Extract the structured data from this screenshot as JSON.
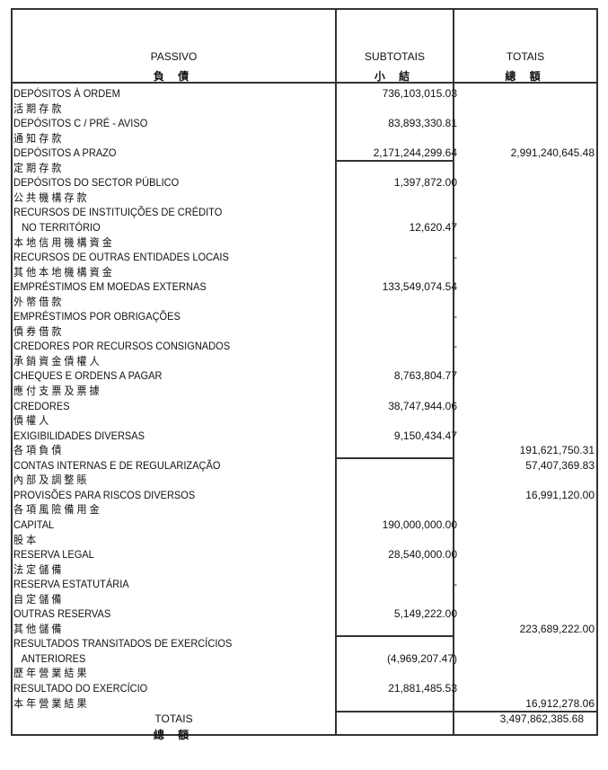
{
  "header": {
    "col1": {
      "pt": "PASSIVO",
      "cn": "負 債"
    },
    "col2": {
      "pt": "SUBTOTAIS",
      "cn": "小 結"
    },
    "col3": {
      "pt": "TOTAIS",
      "cn": "總 額"
    }
  },
  "lines": [
    {
      "text": "DEPÓSITOS À ORDEM",
      "subtotal": "736,103,015.03",
      "total": ""
    },
    {
      "text": "活 期 存 款",
      "subtotal": "",
      "total": ""
    },
    {
      "text": "DEPÓSITOS C / PRÉ - AVISO",
      "subtotal": "83,893,330.81",
      "total": ""
    },
    {
      "text": "通 知 存 款",
      "subtotal": "",
      "total": ""
    },
    {
      "text": "DEPÓSITOS A PRAZO",
      "subtotal": "2,171,244,299.64",
      "total": "2,991,240,645.48"
    },
    {
      "text": "定 期 存 款",
      "subtotal": "",
      "total": ""
    },
    {
      "text": "DEPÓSITOS DO SECTOR PÚBLICO",
      "subtotal": "1,397,872.00",
      "total": ""
    },
    {
      "text": "公 共 機 構 存 款",
      "subtotal": "",
      "total": ""
    },
    {
      "text": "RECURSOS DE INSTITUIÇÕES DE CRÉDITO",
      "subtotal": "",
      "total": ""
    },
    {
      "text": "   NO TERRITÓRIO",
      "subtotal": "12,620.47",
      "total": ""
    },
    {
      "text": "本 地 信 用 機 構 資 金",
      "subtotal": "",
      "total": ""
    },
    {
      "text": "RECURSOS DE OUTRAS ENTIDADES LOCAIS",
      "subtotal": "-",
      "total": ""
    },
    {
      "text": "其 他 本 地 機 構 資 金",
      "subtotal": "",
      "total": ""
    },
    {
      "text": "EMPRÉSTIMOS EM MOEDAS EXTERNAS",
      "subtotal": "133,549,074.54",
      "total": ""
    },
    {
      "text": "外 幣 借 款",
      "subtotal": "",
      "total": ""
    },
    {
      "text": "EMPRÉSTIMOS POR OBRIGAÇÕES",
      "subtotal": "-",
      "total": ""
    },
    {
      "text": "債 券 借 款",
      "subtotal": "",
      "total": ""
    },
    {
      "text": "CREDORES POR RECURSOS CONSIGNADOS",
      "subtotal": "-",
      "total": ""
    },
    {
      "text": "承 銷 資 金 債 權 人",
      "subtotal": "",
      "total": ""
    },
    {
      "text": "CHEQUES E ORDENS A PAGAR",
      "subtotal": "8,763,804.77",
      "total": ""
    },
    {
      "text": "應 付 支 票 及 票 據",
      "subtotal": "",
      "total": ""
    },
    {
      "text": "CREDORES",
      "subtotal": "38,747,944.06",
      "total": ""
    },
    {
      "text": "債 權 人",
      "subtotal": "",
      "total": ""
    },
    {
      "text": "EXIGIBILIDADES DIVERSAS",
      "subtotal": "9,150,434.47",
      "total": ""
    },
    {
      "text": "各 項 負 債",
      "subtotal": "",
      "total": "191,621,750.31"
    },
    {
      "text": "CONTAS INTERNAS E DE REGULARIZAÇÃO",
      "subtotal": "",
      "total": "57,407,369.83"
    },
    {
      "text": "內 部 及 調 整 賬",
      "subtotal": "",
      "total": ""
    },
    {
      "text": "PROVISÕES PARA RISCOS DIVERSOS",
      "subtotal": "",
      "total": "16,991,120.00"
    },
    {
      "text": "各 項 風 險 備 用 金",
      "subtotal": "",
      "total": ""
    },
    {
      "text": "CAPITAL",
      "subtotal": "190,000,000.00",
      "total": ""
    },
    {
      "text": "股 本",
      "subtotal": "",
      "total": ""
    },
    {
      "text": "RESERVA LEGAL",
      "subtotal": "28,540,000.00",
      "total": ""
    },
    {
      "text": "法 定 儲 備",
      "subtotal": "",
      "total": ""
    },
    {
      "text": "RESERVA ESTATUTÁRIA",
      "subtotal": "-",
      "total": ""
    },
    {
      "text": "自 定 儲 備",
      "subtotal": "",
      "total": ""
    },
    {
      "text": "OUTRAS RESERVAS",
      "subtotal": "5,149,222.00",
      "total": ""
    },
    {
      "text": "其 他 儲 備",
      "subtotal": "",
      "total": "223,689,222.00"
    },
    {
      "text": "RESULTADOS TRANSITADOS DE EXERCÍCIOS",
      "subtotal": "",
      "total": ""
    },
    {
      "text": "   ANTERIORES",
      "subtotal": "(4,969,207.47)",
      "total": ""
    },
    {
      "text": "歷 年 營 業 結 果",
      "subtotal": "",
      "total": ""
    },
    {
      "text": "RESULTADO DO EXERCÍCIO",
      "subtotal": "21,881,485.53",
      "total": ""
    },
    {
      "text": "本 年 營 業 結 果",
      "subtotal": "",
      "total": "16,912,278.06"
    }
  ],
  "footer": {
    "pt": "TOTAIS",
    "cn": "總 額",
    "subtotal": "",
    "total": "3,497,862,385.68"
  }
}
